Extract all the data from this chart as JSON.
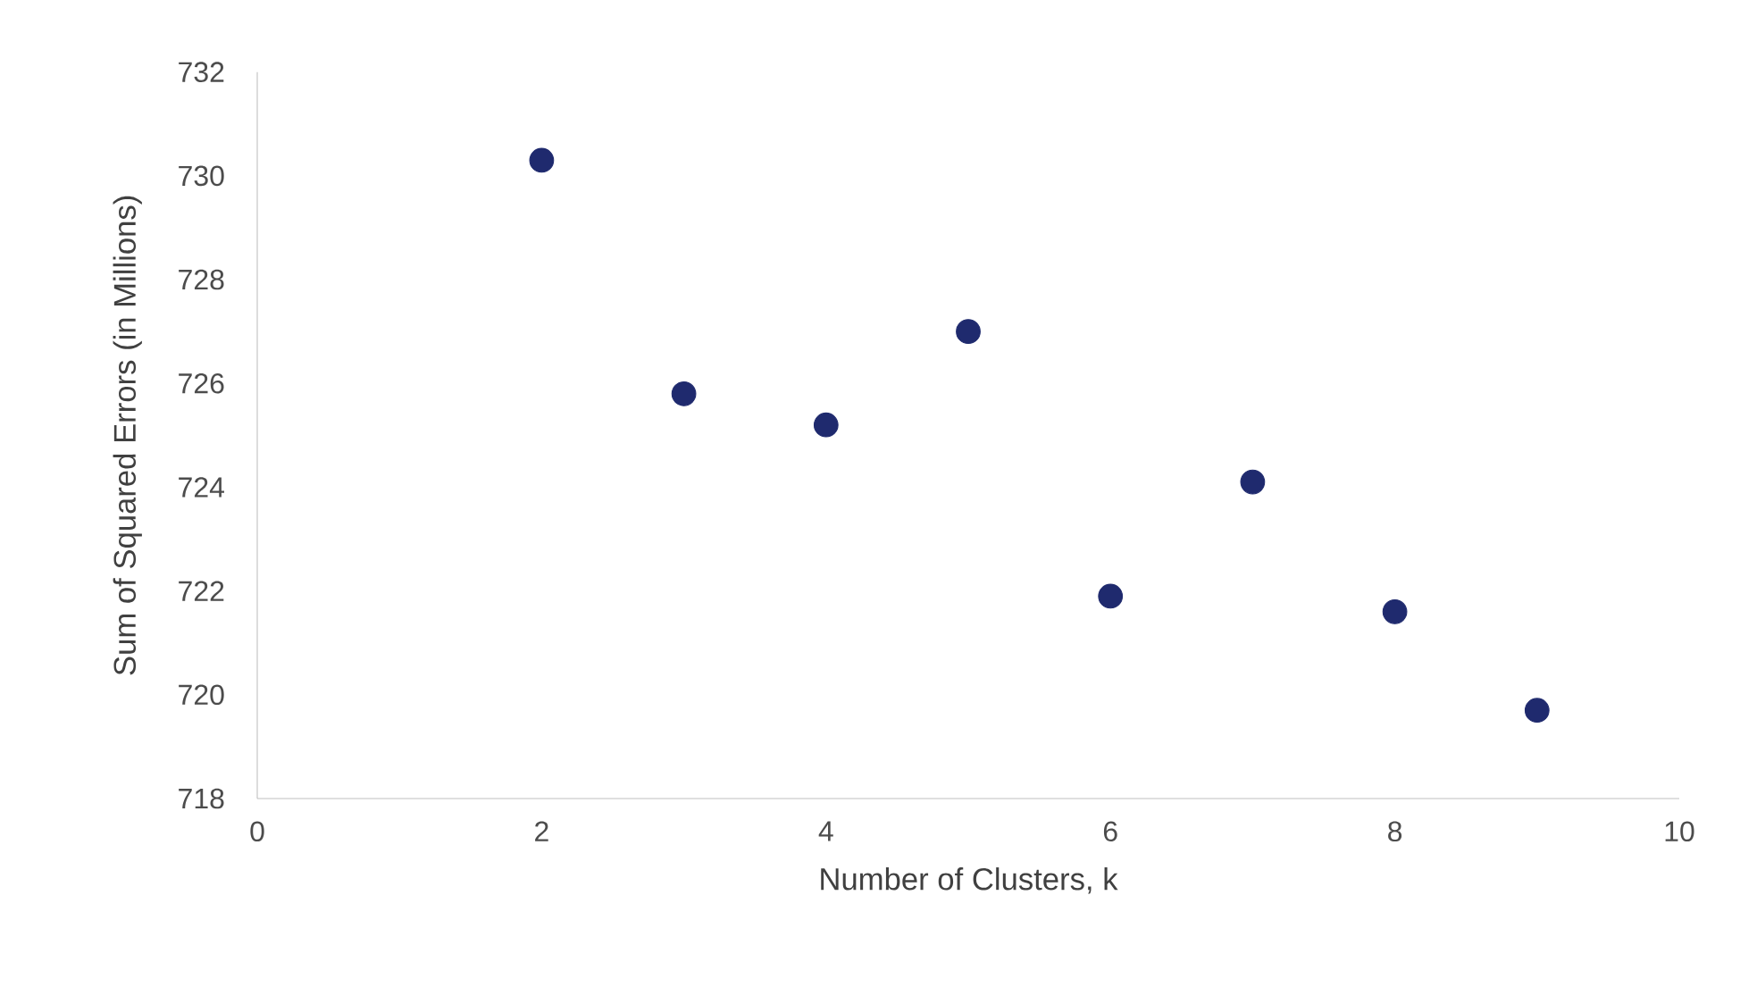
{
  "chart_data": {
    "type": "scatter",
    "xlabel": "Number of Clusters, k",
    "ylabel": "Sum of Squared Errors (in Millions)",
    "x": [
      2,
      3,
      4,
      5,
      6,
      7,
      8,
      9
    ],
    "values": [
      730.3,
      725.8,
      725.2,
      727.0,
      721.9,
      724.1,
      721.6,
      719.7
    ],
    "color": "#1f2a6e",
    "marker": "circle",
    "xlim": [
      0,
      10
    ],
    "xticks": [
      0,
      2,
      4,
      6,
      8,
      10
    ],
    "ylim": [
      718,
      732
    ],
    "yticks": [
      718,
      720,
      722,
      724,
      726,
      728,
      730,
      732
    ],
    "grid": false
  }
}
